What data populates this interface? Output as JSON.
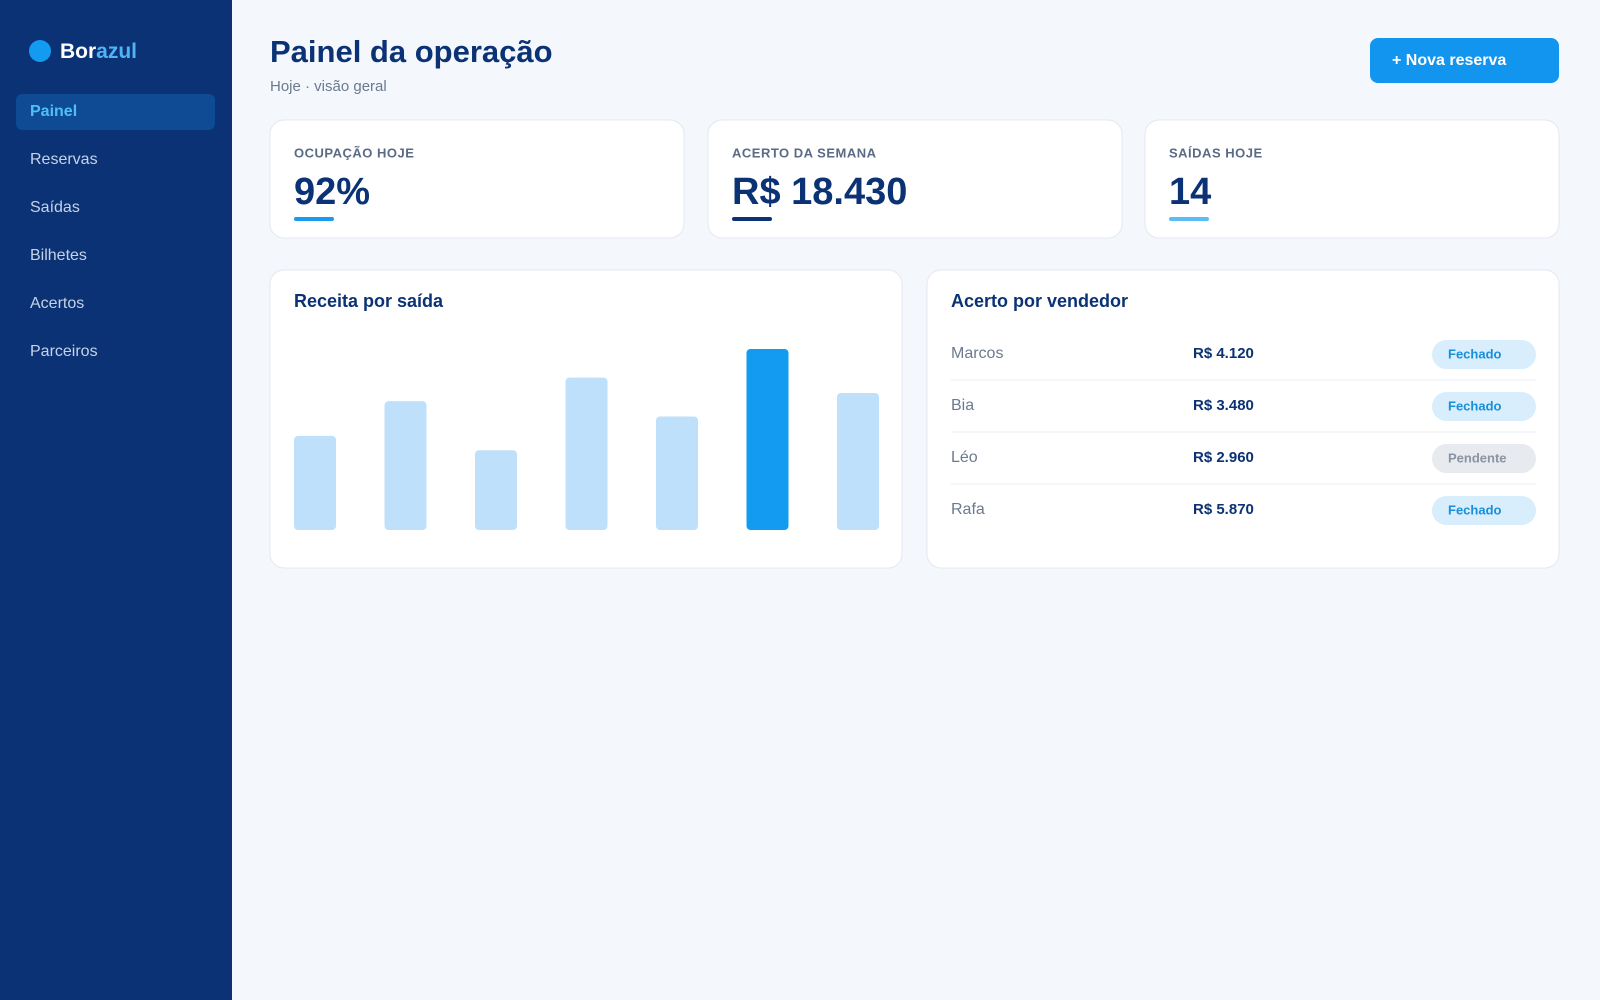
{
  "brand": {
    "first": "Bor",
    "second": "azul"
  },
  "nav": {
    "items": [
      "Painel",
      "Reservas",
      "Saídas",
      "Bilhetes",
      "Acertos",
      "Parceiros"
    ],
    "active": 0
  },
  "header": {
    "title": "Painel da operação",
    "subtitle": "Hoje · visão geral",
    "button": "+ Nova reserva"
  },
  "kpis": [
    {
      "label": "OCUPAÇÃO HOJE",
      "value": "92%",
      "accent": "#1a9bee"
    },
    {
      "label": "ACERTO DA SEMANA",
      "value": "R$ 18.430",
      "accent": "#0b3275"
    },
    {
      "label": "SAÍDAS HOJE",
      "value": "14",
      "accent": "#5bbdf5"
    }
  ],
  "chart_data": {
    "type": "bar",
    "title": "Receita por saída",
    "values": [
      92,
      126,
      78,
      149,
      111,
      177,
      134
    ],
    "color": "#bfe0fa",
    "highlight_color": "#139bf2"
  },
  "sellers": {
    "title": "Acerto por vendedor",
    "rows": [
      {
        "name": "Marcos",
        "amount": "R$ 4.120",
        "status": "Fechado"
      },
      {
        "name": "Bia",
        "amount": "R$ 3.480",
        "status": "Fechado"
      },
      {
        "name": "Léo",
        "amount": "R$ 2.960",
        "status": "Pendente"
      },
      {
        "name": "Rafa",
        "amount": "R$ 5.870",
        "status": "Fechado"
      }
    ],
    "status_styles": {
      "Fechado": {
        "bg": "#d8eefc",
        "fg": "#1a8fd8"
      },
      "Pendente": {
        "bg": "#e7eaee",
        "fg": "#8a94a3"
      }
    }
  }
}
